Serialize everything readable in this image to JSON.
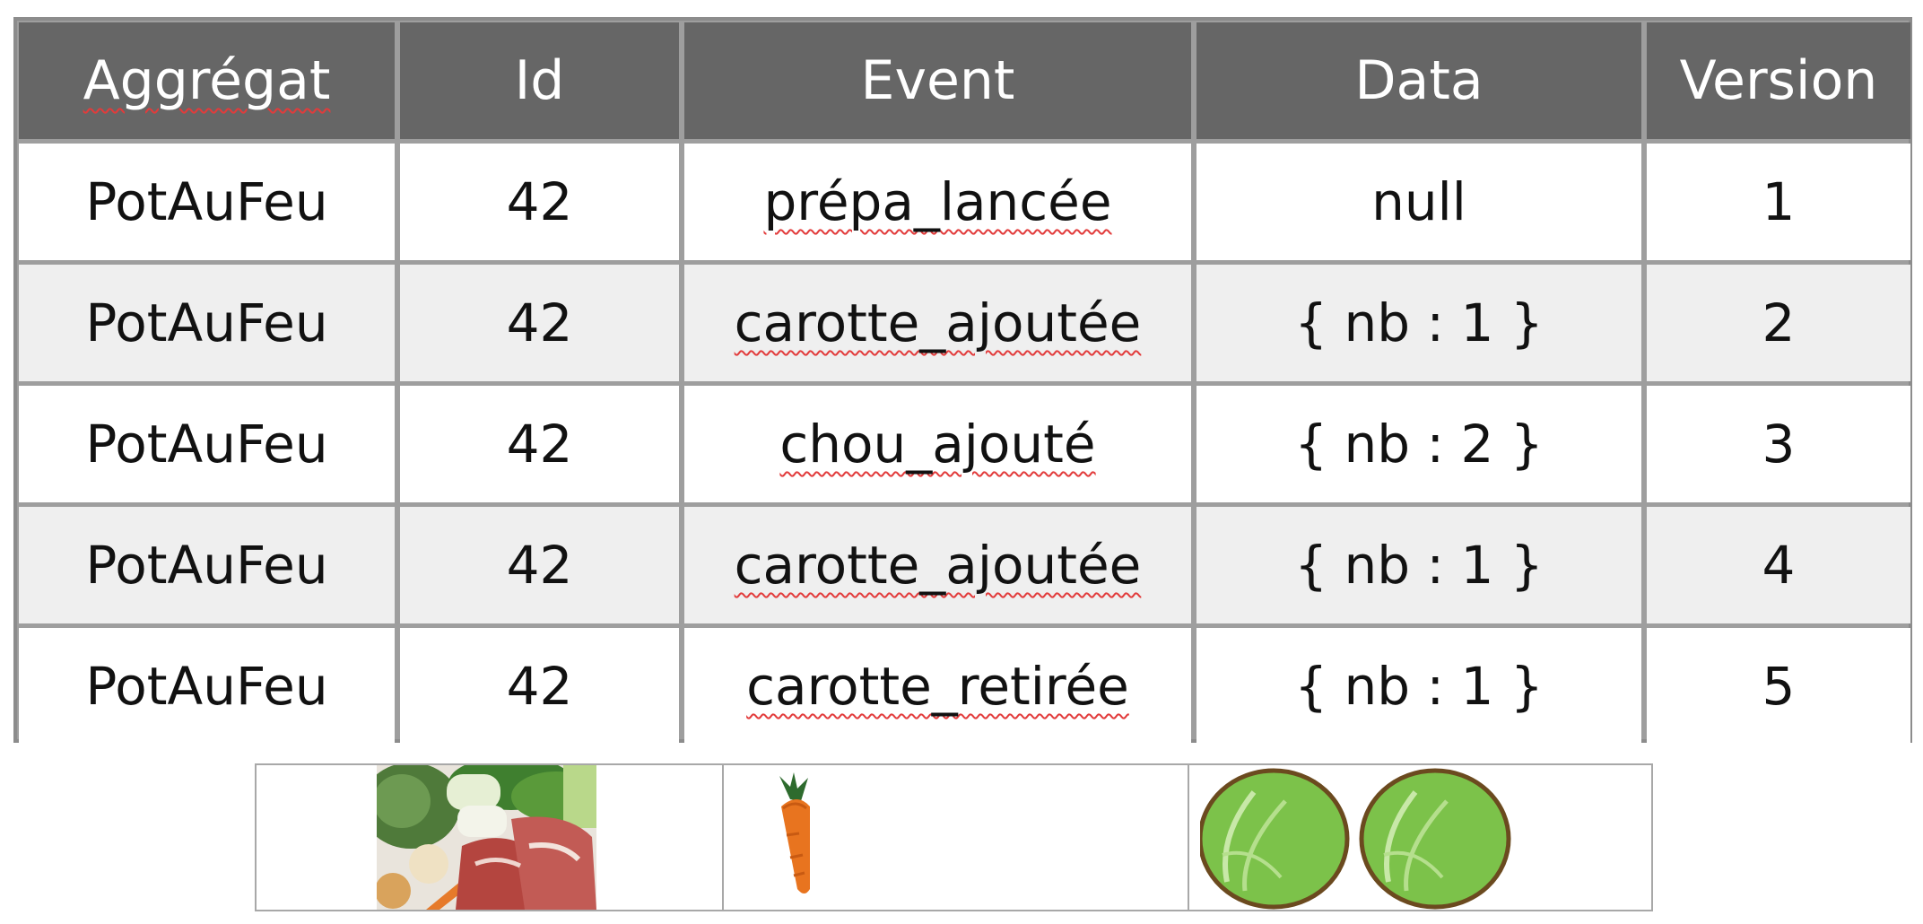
{
  "table": {
    "headers": [
      "Aggrégat",
      "Id",
      "Event",
      "Data",
      "Version"
    ],
    "rows": [
      [
        "PotAuFeu",
        "42",
        "prépa_lancée",
        "null",
        "1"
      ],
      [
        "PotAuFeu",
        "42",
        "carotte_ajoutée",
        "{ nb : 1 }",
        "2"
      ],
      [
        "PotAuFeu",
        "42",
        "chou_ajouté",
        "{ nb : 2 }",
        "3"
      ],
      [
        "PotAuFeu",
        "42",
        "carotte_ajoutée",
        "{ nb : 1 }",
        "4"
      ],
      [
        "PotAuFeu",
        "42",
        "carotte_retirée",
        "{ nb : 1 }",
        "5"
      ]
    ]
  },
  "images": {
    "panel1": "pot-au-feu-ingredients-photo",
    "panel2": "carrot-icon",
    "panel3": [
      "cabbage-icon",
      "cabbage-icon"
    ]
  },
  "colors": {
    "header_bg": "#666666",
    "header_text": "#ffffff",
    "row_alt_bg": "#efefef",
    "grid_line": "#9e9e9e",
    "spell_underline": "#e23b3b"
  }
}
